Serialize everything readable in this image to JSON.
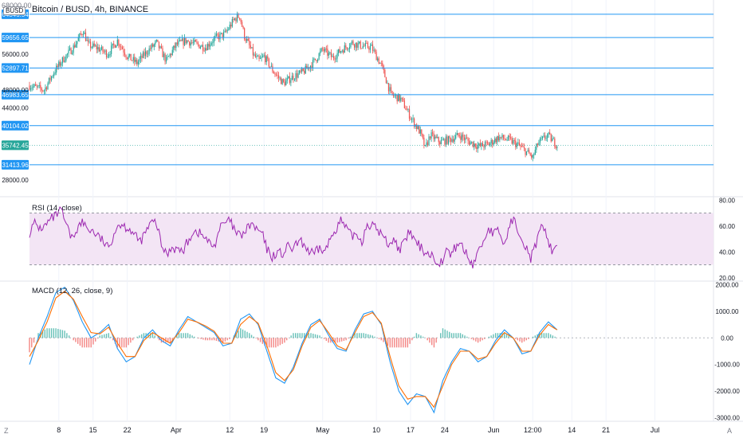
{
  "header": {
    "symbol_title": "Bitcoin / BUSD, 4h, BINANCE",
    "currency_badge": "BUSD",
    "top_price": "68000.00"
  },
  "price_pane": {
    "ylim": [
      24500,
      68000
    ],
    "level_lines": [
      64846.54,
      59656.65,
      52897.71,
      46983.65,
      40104.02,
      31413.96
    ],
    "level_labels": [
      "64846.54",
      "59656.65",
      "52897.71",
      "46983.65",
      "40104.02",
      "31413.96"
    ],
    "current_price": 35742.45,
    "current_price_label": "35742.45",
    "axis_ticks": [
      56000,
      48000,
      44000,
      28000
    ],
    "axis_tick_labels": [
      "56000.00",
      "48000.00",
      "44000.00",
      "28000.00"
    ],
    "colors": {
      "level_line": "#2196f3",
      "current": "#26a69a",
      "up": "#26a69a",
      "down": "#ef5350",
      "label_bg": "#2196f3"
    }
  },
  "rsi_pane": {
    "title": "RSI (14, close)",
    "ylim": [
      18,
      82
    ],
    "upper_band": 70,
    "lower_band": 30,
    "axis_tick_labels": [
      "80.00",
      "60.00",
      "40.00",
      "20.00"
    ],
    "axis_ticks": [
      80,
      60,
      40,
      20
    ],
    "colors": {
      "line": "#9c27b0",
      "band_fill": "#f3e5f5",
      "band_edge": "#9598a1"
    }
  },
  "macd_pane": {
    "title": "MACD (12, 26, close, 9)",
    "ylim": [
      -3100,
      2100
    ],
    "axis_ticks": [
      2000,
      1000,
      0,
      -1000,
      -2000,
      -3000
    ],
    "axis_tick_labels": [
      "2000.00",
      "1000.00",
      "0.00",
      "-1000.00",
      "-2000.00",
      "-3000.00"
    ],
    "colors": {
      "macd": "#2196f3",
      "signal": "#ff6d00",
      "hist_up": "#26a69a",
      "hist_down": "#ef5350"
    }
  },
  "time_axis": {
    "labels": [
      "8",
      "15",
      "22",
      "Apr",
      "12",
      "19",
      "May",
      "10",
      "17",
      "24",
      "Jun",
      "12:00",
      "14",
      "21",
      "Jul"
    ],
    "label_index": [
      6,
      13,
      20,
      30,
      41,
      48,
      60,
      71,
      78,
      85,
      95,
      103,
      111,
      118,
      128
    ],
    "corner_left": "Z",
    "corner_right": "A"
  },
  "chart_data": [
    {
      "type": "candlestick",
      "title": "Bitcoin / BUSD, 4h, BINANCE",
      "x_unit": "day index (Mar 1 = 0)",
      "x_range": [
        0,
        140
      ],
      "price_path": [
        [
          0,
          49000
        ],
        [
          3,
          48000
        ],
        [
          5,
          52000
        ],
        [
          7,
          55000
        ],
        [
          9,
          57500
        ],
        [
          11,
          61200
        ],
        [
          12,
          58000
        ],
        [
          14,
          57300
        ],
        [
          16,
          56000
        ],
        [
          18,
          59000
        ],
        [
          20,
          55500
        ],
        [
          22,
          54000
        ],
        [
          24,
          56500
        ],
        [
          26,
          58500
        ],
        [
          28,
          54500
        ],
        [
          30,
          58000
        ],
        [
          32,
          59000
        ],
        [
          34,
          58200
        ],
        [
          36,
          57500
        ],
        [
          38,
          59500
        ],
        [
          40,
          60500
        ],
        [
          42,
          63800
        ],
        [
          43,
          64500
        ],
        [
          44,
          60000
        ],
        [
          46,
          55500
        ],
        [
          47,
          54500
        ],
        [
          48,
          55500
        ],
        [
          50,
          52000
        ],
        [
          52,
          49500
        ],
        [
          54,
          51000
        ],
        [
          56,
          52000
        ],
        [
          58,
          54000
        ],
        [
          60,
          57000
        ],
        [
          62,
          55200
        ],
        [
          64,
          57000
        ],
        [
          66,
          58500
        ],
        [
          68,
          57800
        ],
        [
          70,
          57500
        ],
        [
          72,
          53500
        ],
        [
          74,
          47000
        ],
        [
          76,
          46000
        ],
        [
          78,
          42000
        ],
        [
          80,
          38500
        ],
        [
          81,
          35000
        ],
        [
          82,
          38000
        ],
        [
          84,
          36500
        ],
        [
          86,
          37000
        ],
        [
          88,
          38000
        ],
        [
          90,
          36500
        ],
        [
          92,
          35500
        ],
        [
          94,
          36000
        ],
        [
          96,
          37500
        ],
        [
          98,
          37000
        ],
        [
          100,
          35800
        ],
        [
          102,
          34000
        ],
        [
          103,
          33000
        ],
        [
          104,
          36000
        ],
        [
          106,
          38000
        ],
        [
          108,
          35742
        ]
      ]
    },
    {
      "type": "line",
      "title": "RSI (14, close)",
      "series": [
        {
          "name": "RSI",
          "values": [
            55,
            62,
            58,
            60,
            65,
            68,
            72,
            60,
            50,
            58,
            63,
            58,
            56,
            52,
            48,
            42,
            55,
            62,
            60,
            58,
            52,
            48,
            55,
            62,
            63,
            45,
            38,
            44,
            42,
            40,
            48,
            56,
            55,
            52,
            47,
            44,
            58,
            62,
            64,
            55,
            52,
            56,
            62,
            57,
            55,
            42,
            36,
            40,
            38,
            44,
            42,
            48,
            46,
            40,
            38,
            43,
            40,
            50,
            58,
            64,
            58,
            52,
            54,
            48,
            62,
            60,
            57,
            52,
            46,
            50,
            42,
            46,
            56,
            48,
            44,
            40,
            38,
            34,
            32,
            40,
            38,
            46,
            45,
            36,
            30,
            40,
            48,
            58,
            54,
            56,
            44,
            62,
            64,
            54,
            45,
            35,
            46,
            58,
            54,
            40,
            47
          ]
        }
      ],
      "x_range": [
        0,
        108
      ],
      "upper_band": 70,
      "lower_band": 30
    },
    {
      "type": "line",
      "title": "MACD (12, 26, close, 9)",
      "series": [
        {
          "name": "MACD",
          "values": [
            -1000,
            0,
            800,
            1700,
            1900,
            1400,
            600,
            0,
            200,
            500,
            -400,
            -900,
            -700,
            0,
            300,
            -100,
            -300,
            300,
            800,
            600,
            400,
            200,
            -300,
            -200,
            700,
            900,
            500,
            -500,
            -1500,
            -1700,
            -1100,
            -200,
            500,
            700,
            100,
            -400,
            -500,
            300,
            900,
            1000,
            500,
            -900,
            -2000,
            -2500,
            -2100,
            -2200,
            -2800,
            -1600,
            -900,
            -400,
            -500,
            -900,
            -700,
            -100,
            300,
            0,
            -600,
            -500,
            200,
            600,
            300
          ]
        },
        {
          "name": "Signal",
          "values": [
            -700,
            -100,
            600,
            1500,
            1750,
            1450,
            800,
            200,
            150,
            400,
            -200,
            -700,
            -700,
            -100,
            200,
            0,
            -200,
            200,
            700,
            600,
            450,
            250,
            -200,
            -200,
            500,
            800,
            550,
            -300,
            -1300,
            -1600,
            -1200,
            -300,
            400,
            650,
            200,
            -300,
            -450,
            200,
            800,
            950,
            550,
            -700,
            -1800,
            -2300,
            -2200,
            -2200,
            -2600,
            -1800,
            -1000,
            -500,
            -500,
            -800,
            -700,
            -200,
            200,
            0,
            -500,
            -500,
            100,
            500,
            300
          ]
        }
      ],
      "x_range": [
        0,
        108
      ],
      "ylim": [
        -3100,
        2100
      ]
    }
  ]
}
